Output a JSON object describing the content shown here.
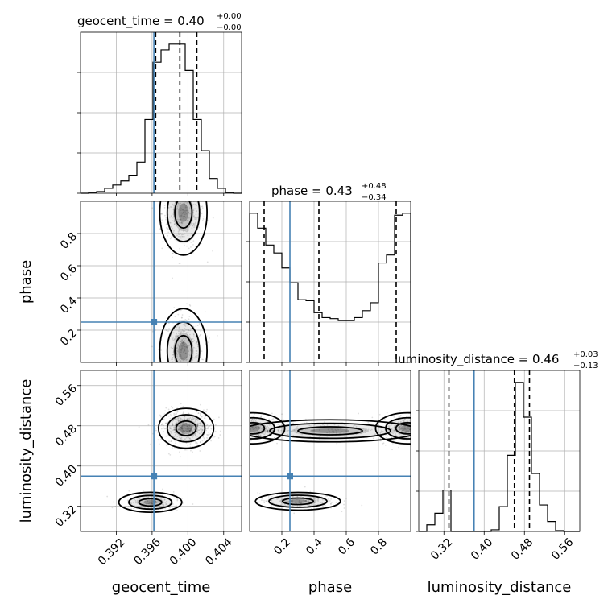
{
  "figure": {
    "kind": "corner-plot",
    "parameters": [
      "geocent_time",
      "phase",
      "luminosity_distance"
    ]
  },
  "colors": {
    "truth": "#4682b4",
    "hist": "#000000",
    "quantile": "#000000",
    "grid": "#b0b0b0"
  },
  "titles": {
    "geocent_time": {
      "label": "geocent_time = 0.40",
      "plus": "+0.00",
      "minus": "−0.00"
    },
    "phase": {
      "label": "phase = 0.43",
      "plus": "+0.48",
      "minus": "−0.34"
    },
    "luminosity_distance": {
      "label": "luminosity_distance = 0.46",
      "plus": "+0.03",
      "minus": "−0.13"
    }
  },
  "axis_labels": {
    "geocent_time": "geocent_time",
    "phase": "phase",
    "luminosity_distance": "luminosity_distance"
  },
  "chart_data": [
    {
      "type": "bar",
      "panel": "hist-geocent_time",
      "variable": "geocent_time",
      "xlim": [
        0.388,
        0.406
      ],
      "xticks": [
        "0.392",
        "0.396",
        "0.400",
        "0.404"
      ],
      "xtick_values": [
        0.392,
        0.396,
        0.4,
        0.404
      ],
      "bin_edges": [
        0.388,
        0.3889,
        0.3898,
        0.3907,
        0.3916,
        0.3925,
        0.3934,
        0.3943,
        0.3952,
        0.3961,
        0.397,
        0.3979,
        0.3988,
        0.3997,
        0.4006,
        0.4015,
        0.4024,
        0.4033,
        0.4042,
        0.4051,
        0.406
      ],
      "values": [
        0,
        1,
        2,
        6,
        10,
        15,
        22,
        38,
        90,
        160,
        175,
        182,
        182,
        150,
        90,
        52,
        18,
        6,
        1,
        0
      ],
      "quantiles": [
        0.3964,
        0.3991,
        0.401
      ],
      "truth": 0.3962,
      "grid": true
    },
    {
      "type": "bar",
      "panel": "hist-phase",
      "variable": "phase",
      "xlim": [
        0.0,
        1.0
      ],
      "bin_edges": [
        0.0,
        0.05,
        0.1,
        0.15,
        0.2,
        0.25,
        0.3,
        0.35,
        0.4,
        0.45,
        0.5,
        0.55,
        0.6,
        0.65,
        0.7,
        0.75,
        0.8,
        0.85,
        0.9,
        0.95,
        1.0
      ],
      "values": [
        150,
        135,
        118,
        110,
        95,
        80,
        63,
        62,
        50,
        45,
        44,
        42,
        42,
        45,
        52,
        60,
        100,
        108,
        148,
        150
      ],
      "quantiles": [
        0.09,
        0.43,
        0.91
      ],
      "truth": 0.25,
      "grid": true
    },
    {
      "type": "bar",
      "panel": "hist-luminosity_distance",
      "variable": "luminosity_distance",
      "xlim": [
        0.27,
        0.59
      ],
      "xticks": [
        "0.32",
        "0.40",
        "0.48",
        "0.56"
      ],
      "xtick_values": [
        0.32,
        0.4,
        0.48,
        0.56
      ],
      "bin_edges": [
        0.27,
        0.286,
        0.302,
        0.318,
        0.334,
        0.35,
        0.366,
        0.382,
        0.398,
        0.414,
        0.43,
        0.446,
        0.462,
        0.478,
        0.494,
        0.51,
        0.526,
        0.542,
        0.558,
        0.574,
        0.59
      ],
      "values": [
        0,
        8,
        22,
        50,
        0,
        0,
        0,
        0,
        0,
        2,
        30,
        92,
        180,
        138,
        70,
        32,
        12,
        1,
        0,
        0
      ],
      "quantiles": [
        0.33,
        0.46,
        0.49
      ],
      "truth": 0.38,
      "grid": true
    },
    {
      "type": "scatter",
      "panel": "2d-geocent_time-phase",
      "x": "geocent_time",
      "y": "phase",
      "xlim": [
        0.388,
        0.406
      ],
      "ylim": [
        0.0,
        1.0
      ],
      "yticks": [
        "0.2",
        "0.4",
        "0.6",
        "0.8"
      ],
      "ytick_values": [
        0.2,
        0.4,
        0.6,
        0.8
      ],
      "truth": [
        0.3962,
        0.25
      ],
      "modes": [
        [
          0.3995,
          0.95
        ],
        [
          0.3995,
          0.05
        ]
      ]
    },
    {
      "type": "scatter",
      "panel": "2d-geocent_time-luminosity_distance",
      "x": "geocent_time",
      "y": "luminosity_distance",
      "xlim": [
        0.388,
        0.406
      ],
      "ylim": [
        0.27,
        0.59
      ],
      "yticks": [
        "0.32",
        "0.40",
        "0.48",
        "0.56"
      ],
      "ytick_values": [
        0.32,
        0.4,
        0.48,
        0.56
      ],
      "truth": [
        0.3962,
        0.38
      ],
      "modes": [
        [
          0.3995,
          0.475
        ],
        [
          0.3958,
          0.33
        ]
      ]
    },
    {
      "type": "scatter",
      "panel": "2d-phase-luminosity_distance",
      "x": "phase",
      "y": "luminosity_distance",
      "xlim": [
        0.0,
        1.0
      ],
      "ylim": [
        0.27,
        0.59
      ],
      "xticks": [
        "0.2",
        "0.4",
        "0.6",
        "0.8"
      ],
      "xtick_values": [
        0.2,
        0.4,
        0.6,
        0.8
      ],
      "truth": [
        0.25,
        0.38
      ],
      "modes": [
        [
          0.03,
          0.475
        ],
        [
          0.97,
          0.475
        ],
        [
          0.3,
          0.33
        ]
      ]
    }
  ]
}
